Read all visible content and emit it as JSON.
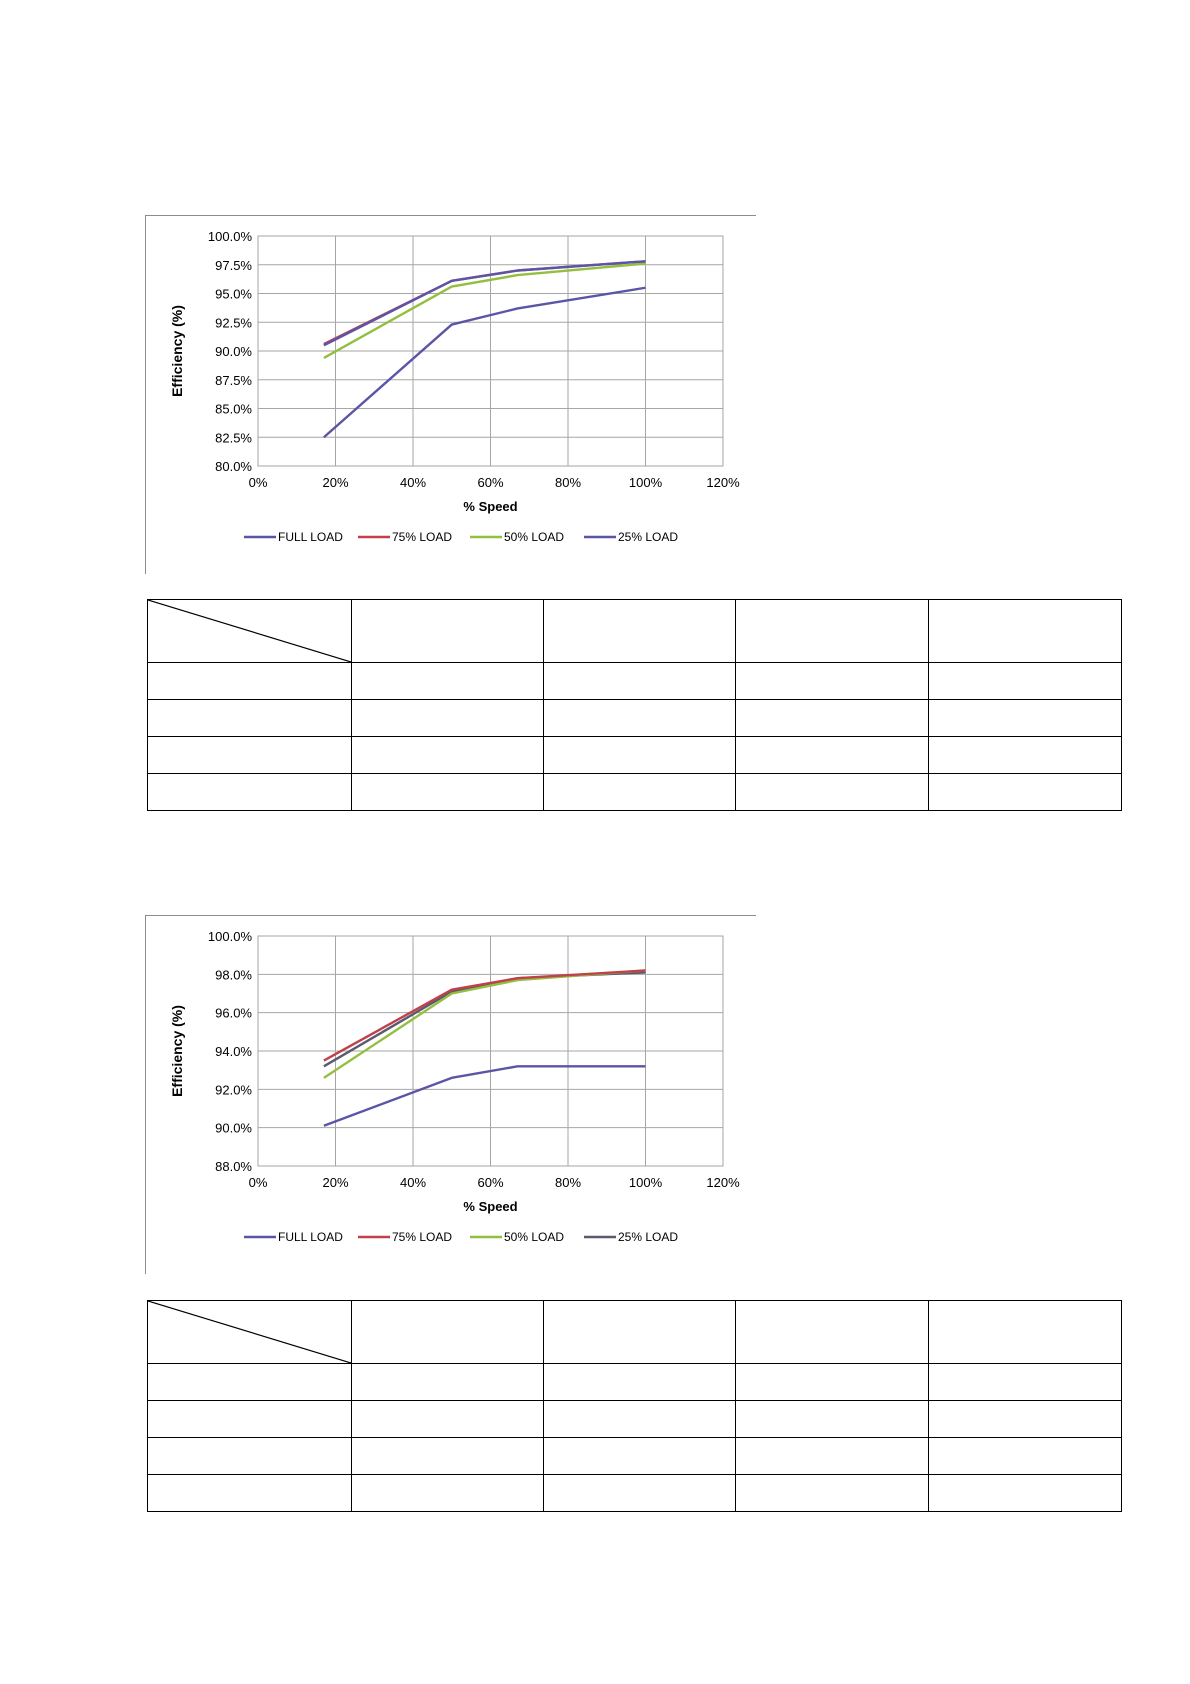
{
  "colors": {
    "full_load": "#5b55a6",
    "load_75": "#c0404c",
    "load_50": "#93bf3f",
    "load_25": "#5a5a6e",
    "grid": "#a6a6a6"
  },
  "charts": [
    {
      "chart_data": {
        "type": "line",
        "title": "",
        "xlabel": "% Speed",
        "ylabel": "Efficiency (%)",
        "xlim": [
          0,
          120
        ],
        "ylim": [
          80,
          100
        ],
        "x_ticks": [
          "0%",
          "20%",
          "40%",
          "60%",
          "80%",
          "100%",
          "120%"
        ],
        "y_ticks": [
          "100.0%",
          "97.5%",
          "95.0%",
          "92.5%",
          "90.0%",
          "87.5%",
          "85.0%",
          "82.5%",
          "80.0%"
        ],
        "grid": true,
        "legend_position": "bottom",
        "series": [
          {
            "name": "FULL LOAD",
            "color_key": "full_load",
            "x": [
              17,
              50,
              67,
              100
            ],
            "y": [
              90.5,
              96.1,
              97.0,
              97.8
            ]
          },
          {
            "name": "75% LOAD",
            "color_key": "load_75",
            "x": [
              17,
              50,
              67,
              100
            ],
            "y": [
              90.6,
              96.1,
              97.0,
              97.8
            ]
          },
          {
            "name": "50% LOAD",
            "color_key": "load_50",
            "x": [
              17,
              50,
              67,
              100
            ],
            "y": [
              89.4,
              95.6,
              96.6,
              97.6
            ]
          },
          {
            "name": "25% LOAD",
            "color_key": "full_load",
            "x": [
              17,
              50,
              67,
              100
            ],
            "y": [
              82.5,
              92.3,
              93.7,
              95.5
            ]
          }
        ]
      }
    },
    {
      "chart_data": {
        "type": "line",
        "title": "",
        "xlabel": "% Speed",
        "ylabel": "Efficiency (%)",
        "xlim": [
          0,
          120
        ],
        "ylim": [
          88,
          100
        ],
        "x_ticks": [
          "0%",
          "20%",
          "40%",
          "60%",
          "80%",
          "100%",
          "120%"
        ],
        "y_ticks": [
          "100.0%",
          "98.0%",
          "96.0%",
          "94.0%",
          "92.0%",
          "90.0%",
          "88.0%"
        ],
        "grid": true,
        "legend_position": "bottom",
        "series": [
          {
            "name": "FULL LOAD",
            "color_key": "full_load",
            "x": [
              17,
              50,
              67,
              100
            ],
            "y": [
              90.1,
              92.6,
              93.2,
              93.2
            ]
          },
          {
            "name": "75% LOAD",
            "color_key": "load_75",
            "x": [
              17,
              50,
              67,
              100
            ],
            "y": [
              93.5,
              97.2,
              97.8,
              98.2
            ]
          },
          {
            "name": "50% LOAD",
            "color_key": "load_50",
            "x": [
              17,
              50,
              67,
              100
            ],
            "y": [
              92.6,
              97.0,
              97.7,
              98.2
            ]
          },
          {
            "name": "25% LOAD",
            "color_key": "load_25",
            "x": [
              17,
              50,
              67,
              100
            ],
            "y": [
              93.2,
              97.1,
              97.8,
              98.1
            ]
          }
        ]
      }
    }
  ],
  "tables": [
    {
      "rows": [
        [
          "",
          "",
          "",
          "",
          ""
        ],
        [
          "",
          "",
          "",
          "",
          ""
        ],
        [
          "",
          "",
          "",
          "",
          ""
        ],
        [
          "",
          "",
          "",
          "",
          ""
        ],
        [
          "",
          "",
          "",
          "",
          ""
        ]
      ]
    },
    {
      "rows": [
        [
          "",
          "",
          "",
          "",
          ""
        ],
        [
          "",
          "",
          "",
          "",
          ""
        ],
        [
          "",
          "",
          "",
          "",
          ""
        ],
        [
          "",
          "",
          "",
          "",
          ""
        ],
        [
          "",
          "",
          "",
          "",
          ""
        ]
      ]
    }
  ]
}
